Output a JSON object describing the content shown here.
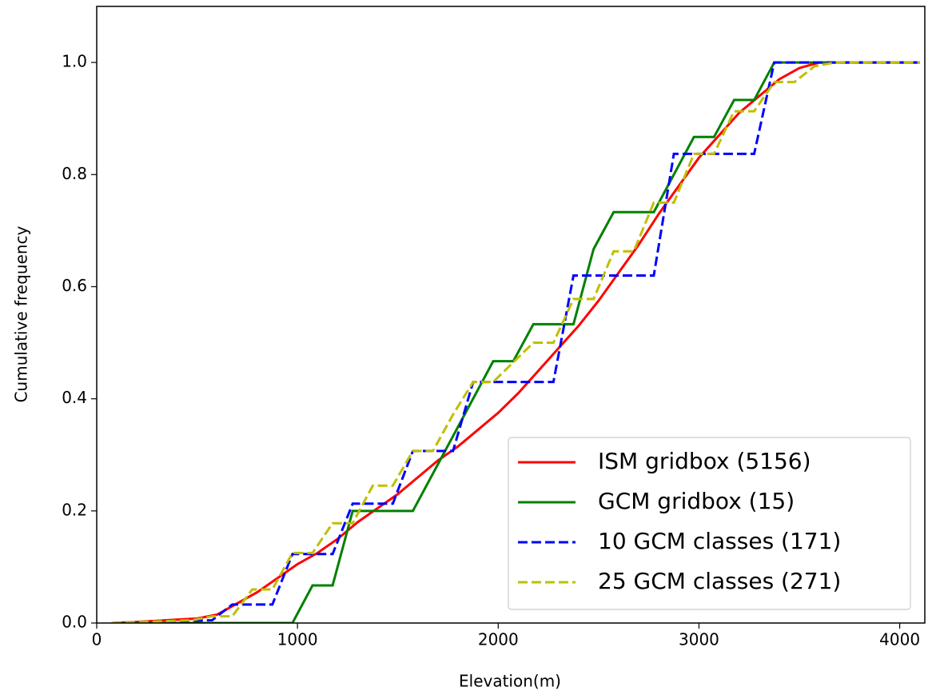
{
  "chart_data": {
    "type": "line",
    "xlabel": "Elevation(m)",
    "ylabel": "Cumulative frequency",
    "xlim": [
      0,
      4125
    ],
    "ylim": [
      0,
      1.1
    ],
    "xticks": [
      0,
      1000,
      2000,
      3000,
      4000
    ],
    "yticks": [
      {
        "value": 0,
        "label": "0.0"
      },
      {
        "value": 0.2,
        "label": "0.2"
      },
      {
        "value": 0.4,
        "label": "0.4"
      },
      {
        "value": 0.6,
        "label": "0.6"
      },
      {
        "value": 0.8,
        "label": "0.8"
      },
      {
        "value": 1,
        "label": "1.0"
      }
    ],
    "legend": "lower right",
    "series": [
      {
        "name": "ISM gridbox (5156)",
        "color": "#ff0000",
        "linestyle": "solid",
        "x": [
          75,
          200,
          300,
          400,
          500,
          600,
          700,
          800,
          900,
          1000,
          1100,
          1200,
          1300,
          1400,
          1500,
          1600,
          1700,
          1800,
          1900,
          2000,
          2100,
          2200,
          2300,
          2400,
          2500,
          2600,
          2700,
          2800,
          2900,
          3000,
          3100,
          3200,
          3300,
          3400,
          3500,
          3600,
          3700,
          3800,
          4100
        ],
        "values": [
          0,
          0.002,
          0.004,
          0.006,
          0.008,
          0.015,
          0.035,
          0.055,
          0.08,
          0.105,
          0.125,
          0.15,
          0.18,
          0.205,
          0.23,
          0.26,
          0.29,
          0.315,
          0.345,
          0.375,
          0.41,
          0.45,
          0.49,
          0.53,
          0.575,
          0.625,
          0.675,
          0.73,
          0.78,
          0.83,
          0.87,
          0.91,
          0.94,
          0.97,
          0.99,
          1.0,
          1.0,
          1.0,
          1.0
        ]
      },
      {
        "name": "GCM gridbox (15)",
        "color": "#008000",
        "linestyle": "solid",
        "x": [
          75,
          975,
          1075,
          1175,
          1275,
          1575,
          1975,
          2075,
          2175,
          2375,
          2475,
          2575,
          2775,
          2975,
          3075,
          3175,
          3275,
          3375,
          4100
        ],
        "values": [
          0,
          0,
          0.067,
          0.067,
          0.2,
          0.2,
          0.467,
          0.467,
          0.533,
          0.533,
          0.667,
          0.733,
          0.733,
          0.867,
          0.867,
          0.933,
          0.933,
          1.0,
          1.0
        ]
      },
      {
        "name": "10 GCM classes (171)",
        "color": "#0000ff",
        "linestyle": "dashed",
        "x": [
          75,
          575,
          675,
          875,
          975,
          1175,
          1275,
          1475,
          1575,
          1775,
          1875,
          2275,
          2375,
          2775,
          2875,
          3275,
          3375,
          4100
        ],
        "values": [
          0,
          0.005,
          0.033,
          0.033,
          0.123,
          0.123,
          0.213,
          0.213,
          0.307,
          0.307,
          0.43,
          0.43,
          0.62,
          0.62,
          0.837,
          0.837,
          1.0,
          1.0
        ]
      },
      {
        "name": "25 GCM classes (271)",
        "color": "#bfbf00",
        "linestyle": "dashed",
        "x": [
          75,
          475,
          575,
          675,
          775,
          875,
          975,
          1075,
          1175,
          1275,
          1375,
          1475,
          1575,
          1675,
          1775,
          1875,
          1975,
          2175,
          2275,
          2375,
          2475,
          2575,
          2675,
          2775,
          2875,
          2975,
          3075,
          3175,
          3275,
          3375,
          3475,
          3575,
          3675,
          4100
        ],
        "values": [
          0,
          0.005,
          0.012,
          0.012,
          0.06,
          0.06,
          0.125,
          0.125,
          0.178,
          0.178,
          0.245,
          0.245,
          0.307,
          0.307,
          0.372,
          0.43,
          0.43,
          0.5,
          0.5,
          0.578,
          0.578,
          0.663,
          0.663,
          0.75,
          0.75,
          0.837,
          0.837,
          0.913,
          0.913,
          0.965,
          0.965,
          0.993,
          1.0,
          1.0
        ]
      }
    ]
  }
}
